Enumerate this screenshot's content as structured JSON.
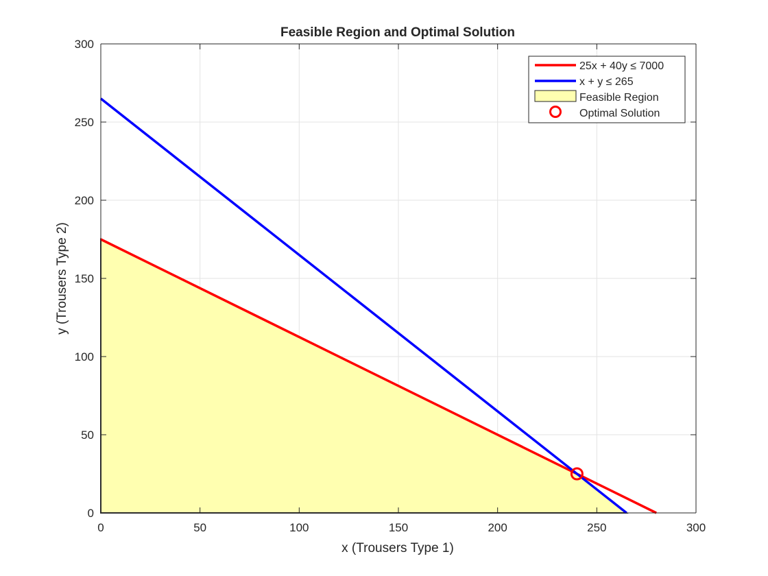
{
  "chart_data": {
    "type": "line",
    "title": "Feasible Region and Optimal Solution",
    "xlabel": "x (Trousers Type 1)",
    "ylabel": "y (Trousers Type 2)",
    "xlim": [
      0,
      300
    ],
    "ylim": [
      0,
      300
    ],
    "xticks": [
      0,
      50,
      100,
      150,
      200,
      250,
      300
    ],
    "yticks": [
      0,
      50,
      100,
      150,
      200,
      250,
      300
    ],
    "grid": true,
    "legend_position": "top-right",
    "series": [
      {
        "name": "25x + 40y ≤ 7000",
        "kind": "line",
        "color": "#ff0000",
        "x": [
          0,
          280
        ],
        "y": [
          175,
          0
        ]
      },
      {
        "name": "x + y ≤ 265",
        "kind": "line",
        "color": "#0000ff",
        "x": [
          0,
          265
        ],
        "y": [
          265,
          0
        ]
      },
      {
        "name": "Feasible Region",
        "kind": "area",
        "color": "#ffffb0",
        "edge_color": "#333333",
        "x": [
          0,
          0,
          240,
          265,
          0
        ],
        "y": [
          0,
          175,
          25,
          0,
          0
        ]
      },
      {
        "name": "Optimal Solution",
        "kind": "marker",
        "color": "#ff0000",
        "x": [
          240
        ],
        "y": [
          25
        ]
      }
    ]
  }
}
